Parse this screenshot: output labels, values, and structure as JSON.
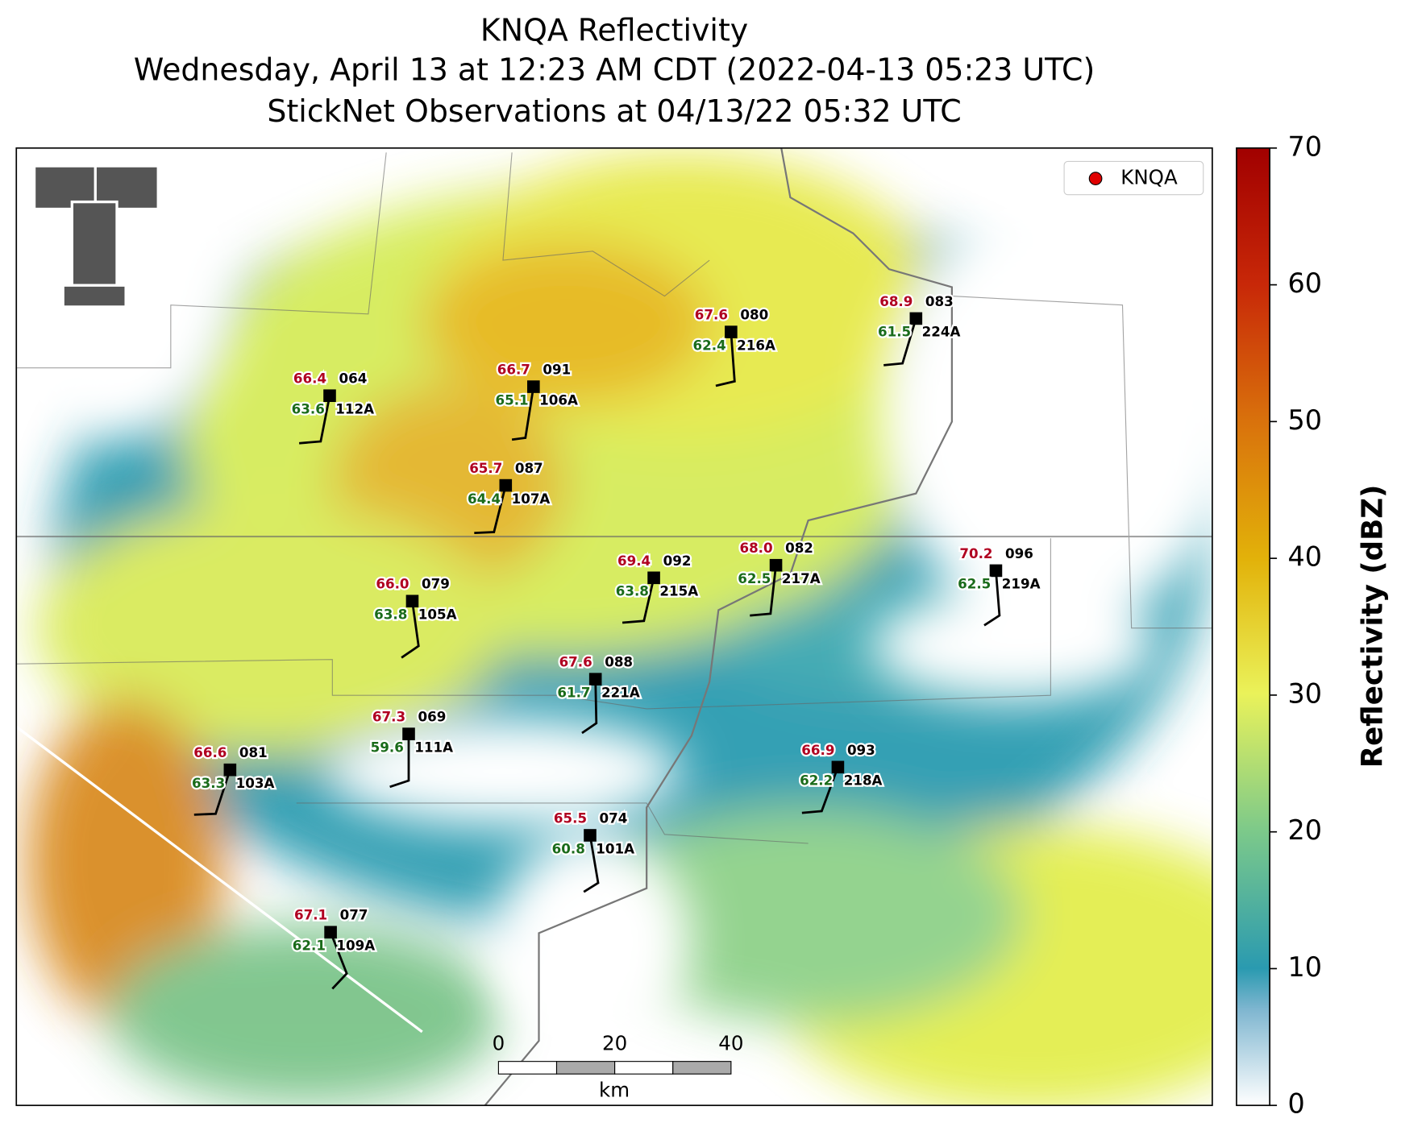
{
  "title": [
    "KNQA Reflectivity",
    "Wednesday, April 13 at 12:23 AM CDT (2022-04-13 05:23 UTC)",
    "StickNet Observations at 04/13/22 05:32 UTC"
  ],
  "legend": {
    "label": "KNQA",
    "color": "#e00000"
  },
  "colorbar": {
    "label": "Reflectivity (dBZ)",
    "lim": [
      0,
      70
    ],
    "ticks": [
      0,
      10,
      20,
      30,
      40,
      50,
      60,
      70
    ]
  },
  "scalebar": {
    "ticks": [
      0,
      20,
      40
    ],
    "lim": [
      0,
      40
    ],
    "unit": "km"
  },
  "stations": [
    {
      "temperature": "66.4",
      "dewpoint": "63.6",
      "id": "064",
      "probe": "112A"
    },
    {
      "temperature": "66.7",
      "dewpoint": "65.1",
      "id": "091",
      "probe": "106A"
    },
    {
      "temperature": "67.6",
      "dewpoint": "62.4",
      "id": "080",
      "probe": "216A"
    },
    {
      "temperature": "68.9",
      "dewpoint": "61.5",
      "id": "083",
      "probe": "224A"
    },
    {
      "temperature": "65.7",
      "dewpoint": "64.4",
      "id": "087",
      "probe": "107A"
    },
    {
      "temperature": "66.0",
      "dewpoint": "63.8",
      "id": "079",
      "probe": "105A"
    },
    {
      "temperature": "69.4",
      "dewpoint": "63.8",
      "id": "092",
      "probe": "215A"
    },
    {
      "temperature": "68.0",
      "dewpoint": "62.5",
      "id": "082",
      "probe": "217A"
    },
    {
      "temperature": "70.2",
      "dewpoint": "62.5",
      "id": "096",
      "probe": "219A"
    },
    {
      "temperature": "67.6",
      "dewpoint": "61.7",
      "id": "088",
      "probe": "221A"
    },
    {
      "temperature": "67.3",
      "dewpoint": "59.6",
      "id": "069",
      "probe": "111A"
    },
    {
      "temperature": "66.6",
      "dewpoint": "63.3",
      "id": "081",
      "probe": "103A"
    },
    {
      "temperature": "66.9",
      "dewpoint": "62.2",
      "id": "093",
      "probe": "218A"
    },
    {
      "temperature": "65.5",
      "dewpoint": "60.8",
      "id": "074",
      "probe": "101A"
    },
    {
      "temperature": "67.1",
      "dewpoint": "62.1",
      "id": "077",
      "probe": "109A"
    }
  ]
}
